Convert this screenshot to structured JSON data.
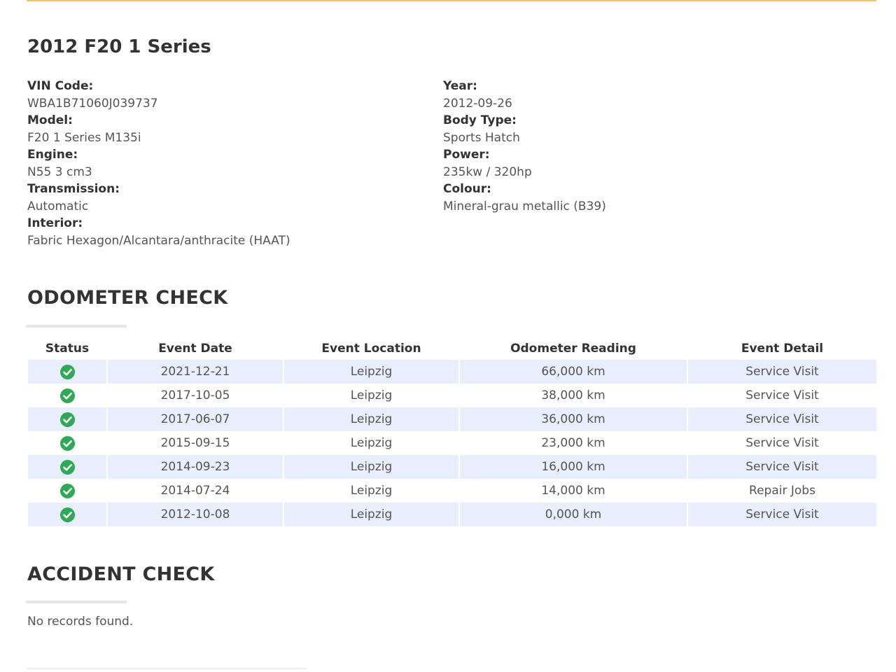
{
  "colors": {
    "accent_rule": "#f3c26a",
    "row_stripe": "#e8eefc",
    "status_ok": "#2eaa55"
  },
  "vehicle": {
    "title": "2012 F20 1 Series",
    "left_specs": [
      {
        "label": "VIN Code:",
        "value": "WBA1B71060J039737"
      },
      {
        "label": "Model:",
        "value": "F20 1 Series M135i"
      },
      {
        "label": "Engine:",
        "value": "N55 3 cm3"
      },
      {
        "label": "Transmission:",
        "value": "Automatic"
      },
      {
        "label": "Interior:",
        "value": "Fabric Hexagon/Alcantara/anthracite (HAAT)"
      }
    ],
    "right_specs": [
      {
        "label": "Year:",
        "value": "2012-09-26"
      },
      {
        "label": "Body Type:",
        "value": "Sports Hatch"
      },
      {
        "label": "Power:",
        "value": "235kw / 320hp"
      },
      {
        "label": "Colour:",
        "value": "Mineral-grau metallic (B39)"
      }
    ]
  },
  "odometer": {
    "title": "ODOMETER CHECK",
    "columns": [
      "Status",
      "Event Date",
      "Event Location",
      "Odometer Reading",
      "Event Detail"
    ],
    "rows": [
      {
        "status_icon": "check-circle-icon",
        "date": "2021-12-21",
        "location": "Leipzig",
        "reading": "66,000 km",
        "detail": "Service Visit"
      },
      {
        "status_icon": "check-circle-icon",
        "date": "2017-10-05",
        "location": "Leipzig",
        "reading": "38,000 km",
        "detail": "Service Visit"
      },
      {
        "status_icon": "check-circle-icon",
        "date": "2017-06-07",
        "location": "Leipzig",
        "reading": "36,000 km",
        "detail": "Service Visit"
      },
      {
        "status_icon": "check-circle-icon",
        "date": "2015-09-15",
        "location": "Leipzig",
        "reading": "23,000 km",
        "detail": "Service Visit"
      },
      {
        "status_icon": "check-circle-icon",
        "date": "2014-09-23",
        "location": "Leipzig",
        "reading": "16,000 km",
        "detail": "Service Visit"
      },
      {
        "status_icon": "check-circle-icon",
        "date": "2014-07-24",
        "location": "Leipzig",
        "reading": "14,000 km",
        "detail": "Repair Jobs"
      },
      {
        "status_icon": "check-circle-icon",
        "date": "2012-10-08",
        "location": "Leipzig",
        "reading": "0,000 km",
        "detail": "Service Visit"
      }
    ]
  },
  "accident": {
    "title": "ACCIDENT CHECK",
    "message": "No records found."
  }
}
